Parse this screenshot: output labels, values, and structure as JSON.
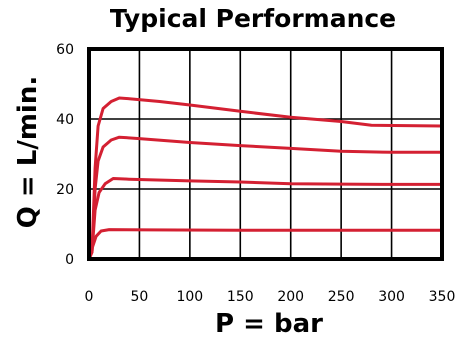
{
  "chart_data": {
    "type": "line",
    "title": "Typical Performance",
    "xlabel": "P = bar",
    "ylabel": "Q = L/min.",
    "xlim": [
      0,
      350
    ],
    "ylim": [
      0,
      60
    ],
    "x_ticks": [
      "0",
      "50",
      "100",
      "150",
      "200",
      "250",
      "300",
      "350"
    ],
    "y_ticks": [
      "0",
      "20",
      "40",
      "60"
    ],
    "grid": true,
    "line_color": "#d42032",
    "series": [
      {
        "points": [
          [
            0,
            0
          ],
          [
            3,
            2
          ],
          [
            6,
            26
          ],
          [
            9,
            38
          ],
          [
            14,
            43
          ],
          [
            22,
            45
          ],
          [
            30,
            46
          ],
          [
            40,
            45.8
          ],
          [
            70,
            45
          ],
          [
            100,
            44
          ],
          [
            150,
            42.2
          ],
          [
            200,
            40.5
          ],
          [
            250,
            39.3
          ],
          [
            280,
            38.2
          ],
          [
            350,
            38
          ]
        ]
      },
      {
        "points": [
          [
            0,
            0
          ],
          [
            3,
            2
          ],
          [
            6,
            20
          ],
          [
            9,
            28
          ],
          [
            14,
            32
          ],
          [
            22,
            34
          ],
          [
            30,
            34.8
          ],
          [
            50,
            34.4
          ],
          [
            100,
            33.3
          ],
          [
            150,
            32.4
          ],
          [
            200,
            31.6
          ],
          [
            250,
            30.8
          ],
          [
            300,
            30.5
          ],
          [
            350,
            30.5
          ]
        ]
      },
      {
        "points": [
          [
            0,
            0
          ],
          [
            3,
            2
          ],
          [
            6,
            14
          ],
          [
            10,
            19
          ],
          [
            16,
            21.5
          ],
          [
            24,
            23
          ],
          [
            40,
            22.8
          ],
          [
            100,
            22.3
          ],
          [
            150,
            22
          ],
          [
            200,
            21.5
          ],
          [
            250,
            21.4
          ],
          [
            300,
            21.3
          ],
          [
            350,
            21.3
          ]
        ]
      },
      {
        "points": [
          [
            0,
            0
          ],
          [
            3,
            3
          ],
          [
            7,
            6.5
          ],
          [
            12,
            8
          ],
          [
            20,
            8.4
          ],
          [
            60,
            8.3
          ],
          [
            150,
            8.2
          ],
          [
            250,
            8.2
          ],
          [
            350,
            8.2
          ]
        ]
      }
    ]
  }
}
